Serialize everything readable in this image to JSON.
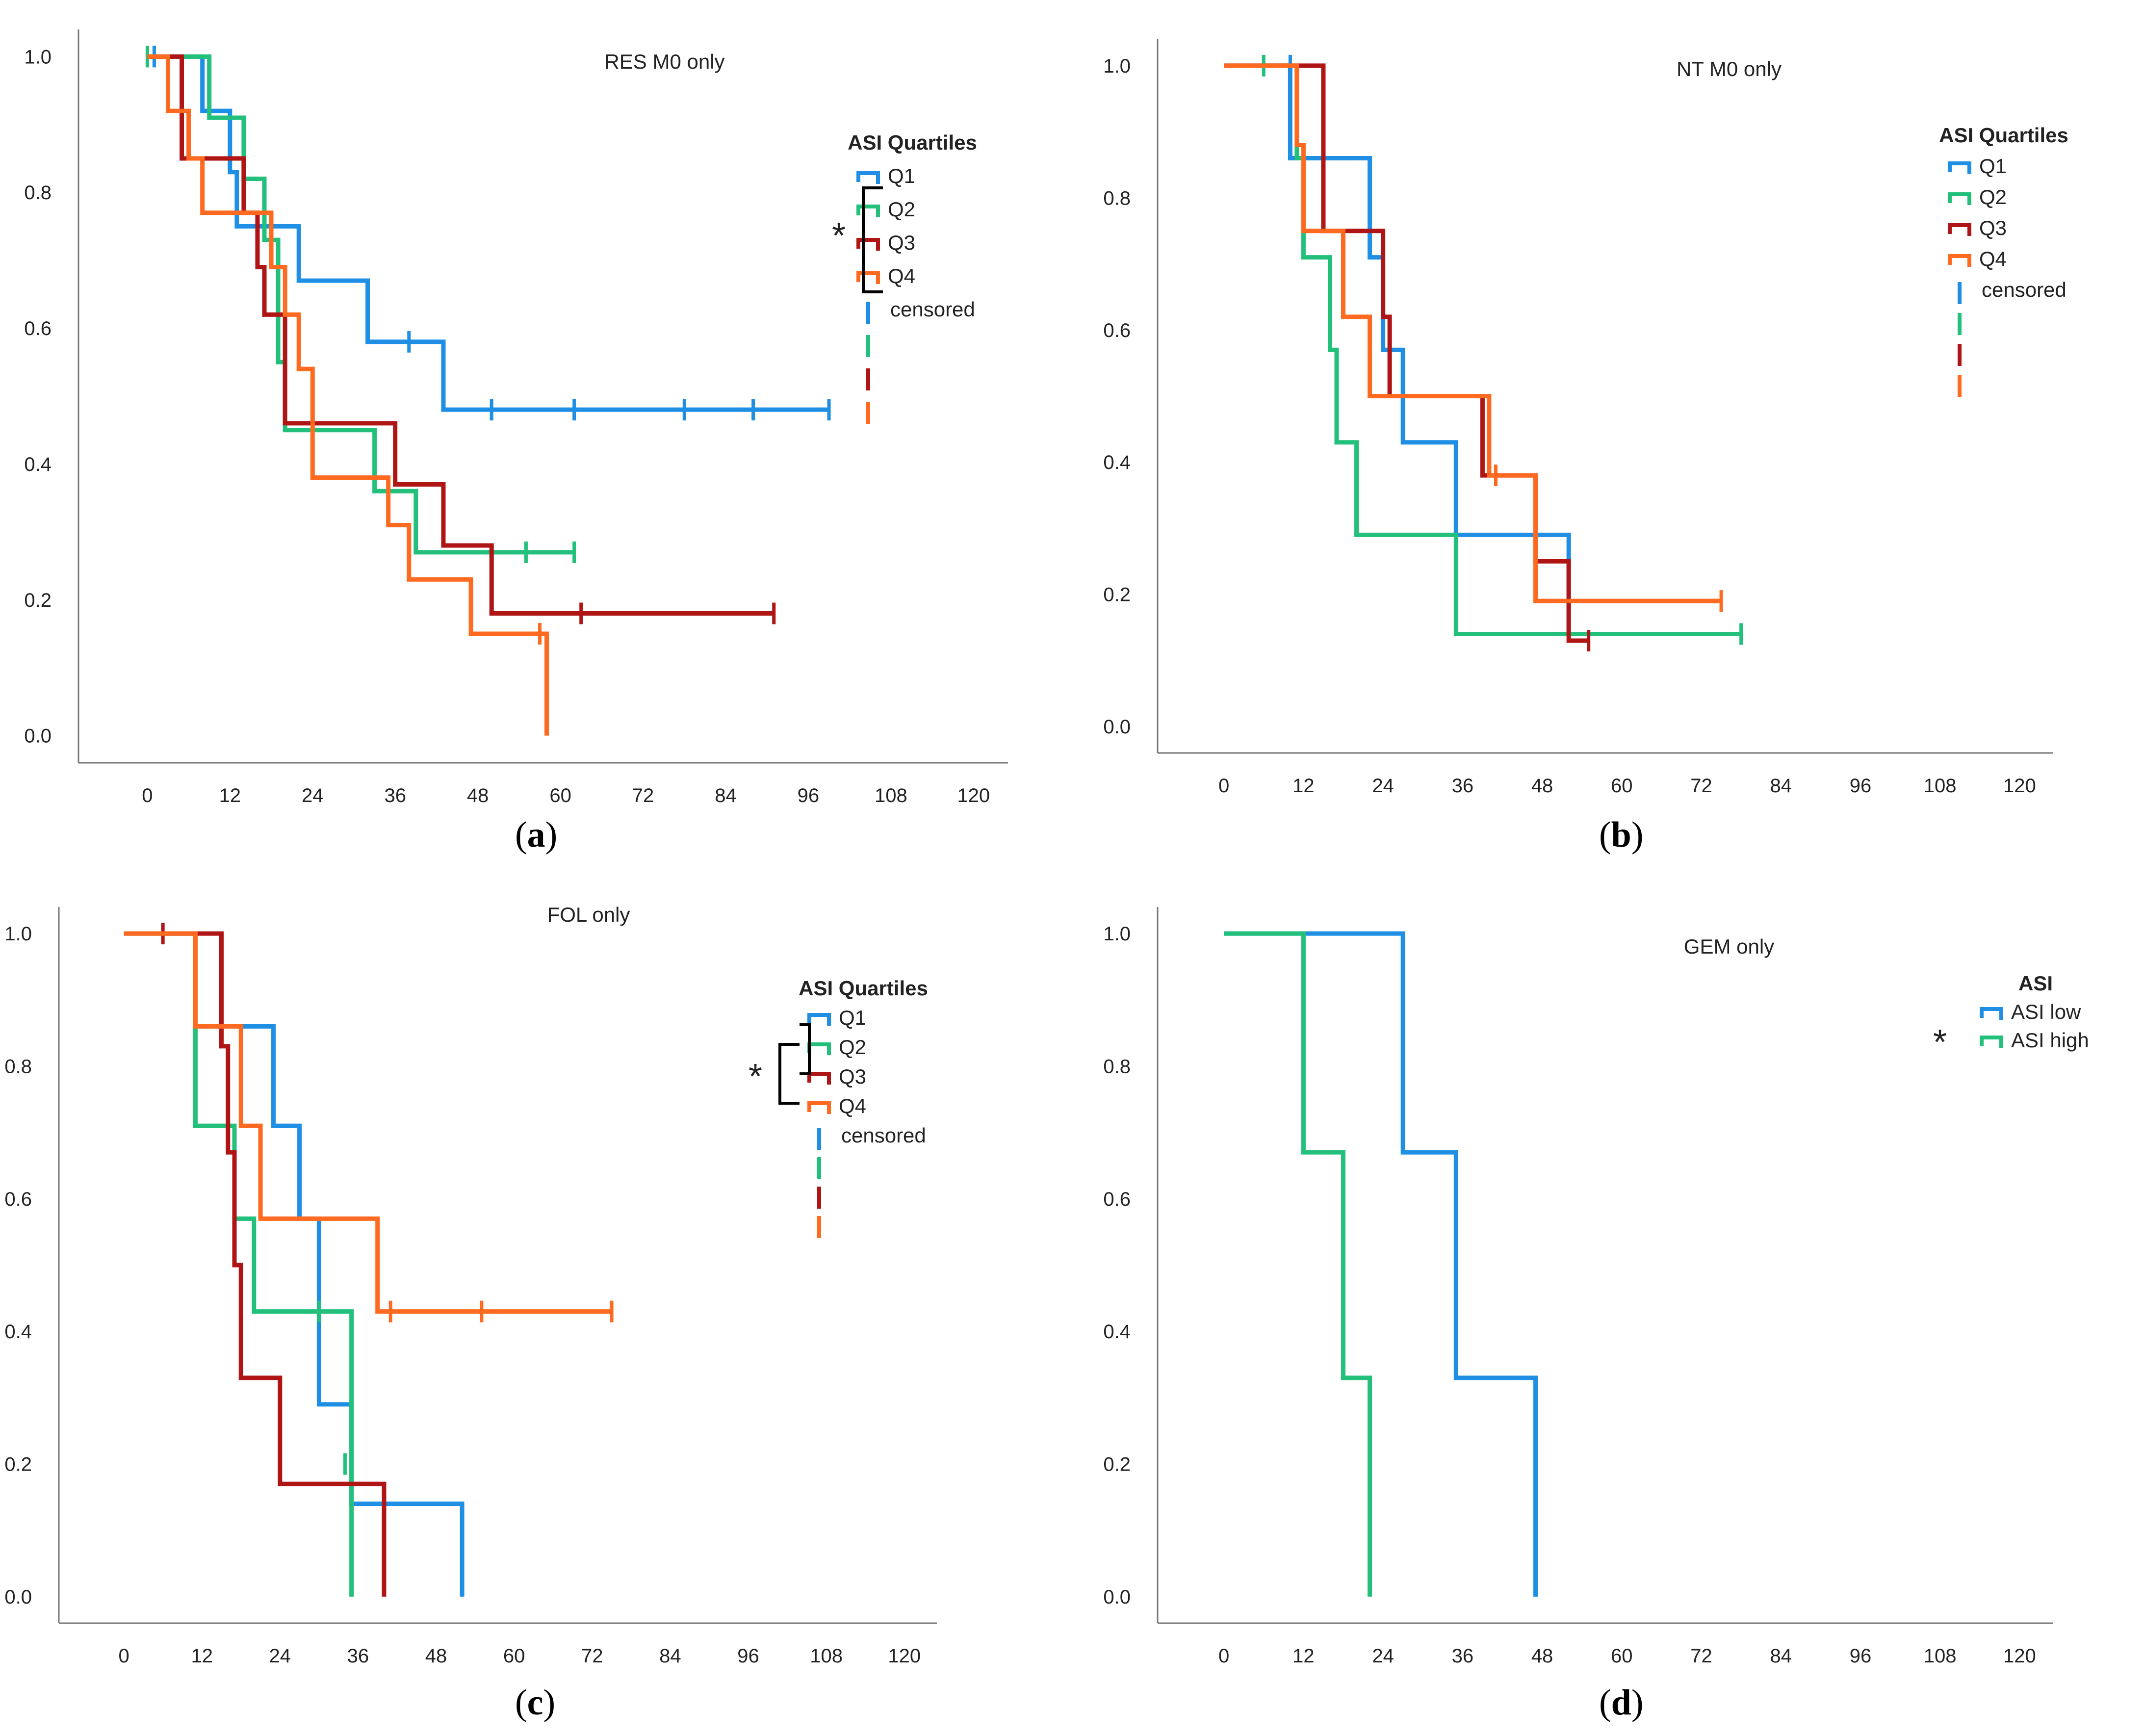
{
  "chart_data": [
    {
      "panel_label": "a",
      "type": "line",
      "subtype": "kaplan-meier",
      "title": "RES M0 only",
      "xlabel": "",
      "ylabel": "",
      "xlim": [
        -10,
        125
      ],
      "ylim": [
        -0.04,
        1.04
      ],
      "xticks": [
        0,
        12,
        24,
        36,
        48,
        60,
        72,
        84,
        96,
        108,
        120
      ],
      "yticks": [
        "0.0",
        "0.2",
        "0.4",
        "0.6",
        "0.8",
        "1.0"
      ],
      "legend": {
        "title": "ASI Quartiles",
        "censored_label": "censored",
        "significance_marker": "*"
      },
      "series": [
        {
          "name": "Q1",
          "color": "#1f8fe5",
          "steps": [
            [
              1,
              1.0
            ],
            [
              8,
              0.92
            ],
            [
              12,
              0.83
            ],
            [
              13,
              0.75
            ],
            [
              22,
              0.67
            ],
            [
              32,
              0.58
            ],
            [
              43,
              0.48
            ],
            [
              99,
              0.48
            ]
          ],
          "censored": [
            [
              1,
              1.0
            ],
            [
              38,
              0.58
            ],
            [
              50,
              0.48
            ],
            [
              62,
              0.48
            ],
            [
              78,
              0.48
            ],
            [
              88,
              0.48
            ],
            [
              99,
              0.48
            ]
          ]
        },
        {
          "name": "Q2",
          "color": "#22c07a",
          "steps": [
            [
              0,
              1.0
            ],
            [
              9,
              0.91
            ],
            [
              14,
              0.82
            ],
            [
              17,
              0.73
            ],
            [
              19,
              0.55
            ],
            [
              20,
              0.45
            ],
            [
              33,
              0.36
            ],
            [
              39,
              0.27
            ],
            [
              62,
              0.27
            ]
          ],
          "censored": [
            [
              0,
              1.0
            ],
            [
              55,
              0.27
            ],
            [
              62,
              0.27
            ]
          ]
        },
        {
          "name": "Q3",
          "color": "#b01515",
          "steps": [
            [
              0,
              1.0
            ],
            [
              5,
              0.85
            ],
            [
              14,
              0.77
            ],
            [
              16,
              0.69
            ],
            [
              17,
              0.62
            ],
            [
              20,
              0.46
            ],
            [
              36,
              0.37
            ],
            [
              43,
              0.28
            ],
            [
              50,
              0.18
            ],
            [
              91,
              0.18
            ]
          ],
          "censored": [
            [
              24,
              0.46
            ],
            [
              63,
              0.18
            ],
            [
              91,
              0.18
            ]
          ]
        },
        {
          "name": "Q4",
          "color": "#ff6a20",
          "steps": [
            [
              0,
              1.0
            ],
            [
              3,
              0.92
            ],
            [
              6,
              0.85
            ],
            [
              8,
              0.77
            ],
            [
              16,
              0.77
            ],
            [
              18,
              0.69
            ],
            [
              20,
              0.62
            ],
            [
              22,
              0.54
            ],
            [
              24,
              0.38
            ],
            [
              35,
              0.31
            ],
            [
              38,
              0.23
            ],
            [
              47,
              0.15
            ],
            [
              58,
              0.0
            ]
          ],
          "censored": [
            [
              57,
              0.15
            ]
          ]
        }
      ]
    },
    {
      "panel_label": "b",
      "type": "line",
      "subtype": "kaplan-meier",
      "title": "NT M0 only",
      "xlabel": "",
      "ylabel": "",
      "xlim": [
        -10,
        125
      ],
      "ylim": [
        -0.04,
        1.04
      ],
      "xticks": [
        0,
        12,
        24,
        36,
        48,
        60,
        72,
        84,
        96,
        108,
        120
      ],
      "yticks": [
        "0.0",
        "0.2",
        "0.4",
        "0.6",
        "0.8",
        "1.0"
      ],
      "legend": {
        "title": "ASI Quartiles",
        "censored_label": "censored",
        "significance_marker": ""
      },
      "series": [
        {
          "name": "Q1",
          "color": "#1f8fe5",
          "steps": [
            [
              0,
              1.0
            ],
            [
              10,
              0.86
            ],
            [
              22,
              0.71
            ],
            [
              24,
              0.57
            ],
            [
              27,
              0.43
            ],
            [
              35,
              0.29
            ],
            [
              52,
              0.14
            ]
          ],
          "censored": [
            [
              10,
              1.0
            ]
          ]
        },
        {
          "name": "Q2",
          "color": "#22c07a",
          "steps": [
            [
              6,
              1.0
            ],
            [
              11,
              0.86
            ],
            [
              12,
              0.71
            ],
            [
              16,
              0.57
            ],
            [
              17,
              0.43
            ],
            [
              20,
              0.29
            ],
            [
              35,
              0.14
            ],
            [
              78,
              0.14
            ]
          ],
          "censored": [
            [
              6,
              1.0
            ],
            [
              78,
              0.14
            ]
          ]
        },
        {
          "name": "Q3",
          "color": "#b01515",
          "steps": [
            [
              0,
              1.0
            ],
            [
              15,
              0.75
            ],
            [
              24,
              0.62
            ],
            [
              25,
              0.5
            ],
            [
              39,
              0.38
            ],
            [
              47,
              0.25
            ],
            [
              52,
              0.13
            ],
            [
              55,
              0.13
            ]
          ],
          "censored": [
            [
              55,
              0.13
            ]
          ]
        },
        {
          "name": "Q4",
          "color": "#ff6a20",
          "steps": [
            [
              0,
              1.0
            ],
            [
              11,
              0.88
            ],
            [
              12,
              0.75
            ],
            [
              18,
              0.62
            ],
            [
              22,
              0.5
            ],
            [
              40,
              0.38
            ],
            [
              47,
              0.19
            ],
            [
              75,
              0.19
            ]
          ],
          "censored": [
            [
              41,
              0.38
            ],
            [
              75,
              0.19
            ]
          ]
        }
      ]
    },
    {
      "panel_label": "c",
      "type": "line",
      "subtype": "kaplan-meier",
      "title": "FOL only",
      "xlabel": "",
      "ylabel": "",
      "xlim": [
        -10,
        125
      ],
      "ylim": [
        -0.04,
        1.04
      ],
      "xticks": [
        0,
        12,
        24,
        36,
        48,
        60,
        72,
        84,
        96,
        108,
        120
      ],
      "yticks": [
        "0.0",
        "0.2",
        "0.4",
        "0.6",
        "0.8",
        "1.0"
      ],
      "legend": {
        "title": "ASI Quartiles",
        "censored_label": "censored",
        "significance_marker": "*"
      },
      "series": [
        {
          "name": "Q1",
          "color": "#1f8fe5",
          "steps": [
            [
              0,
              1.0
            ],
            [
              11,
              0.86
            ],
            [
              23,
              0.71
            ],
            [
              27,
              0.57
            ],
            [
              30,
              0.29
            ],
            [
              35,
              0.14
            ],
            [
              52,
              0.0
            ]
          ],
          "censored": []
        },
        {
          "name": "Q2",
          "color": "#22c07a",
          "steps": [
            [
              0,
              1.0
            ],
            [
              11,
              0.71
            ],
            [
              17,
              0.57
            ],
            [
              20,
              0.43
            ],
            [
              35,
              0.0
            ]
          ],
          "censored": [
            [
              30,
              0.43
            ],
            [
              34,
              0.2
            ]
          ]
        },
        {
          "name": "Q3",
          "color": "#b01515",
          "steps": [
            [
              6,
              1.0
            ],
            [
              15,
              0.83
            ],
            [
              16,
              0.67
            ],
            [
              17,
              0.5
            ],
            [
              18,
              0.33
            ],
            [
              24,
              0.17
            ],
            [
              40,
              0.0
            ]
          ],
          "censored": [
            [
              6,
              1.0
            ]
          ]
        },
        {
          "name": "Q4",
          "color": "#ff6a20",
          "steps": [
            [
              0,
              1.0
            ],
            [
              11,
              0.86
            ],
            [
              18,
              0.71
            ],
            [
              21,
              0.57
            ],
            [
              39,
              0.43
            ],
            [
              75,
              0.43
            ]
          ],
          "censored": [
            [
              41,
              0.43
            ],
            [
              55,
              0.43
            ],
            [
              75,
              0.43
            ]
          ]
        }
      ]
    },
    {
      "panel_label": "d",
      "type": "line",
      "subtype": "kaplan-meier",
      "title": "GEM only",
      "xlabel": "",
      "ylabel": "",
      "xlim": [
        -10,
        125
      ],
      "ylim": [
        -0.04,
        1.04
      ],
      "xticks": [
        0,
        12,
        24,
        36,
        48,
        60,
        72,
        84,
        96,
        108,
        120
      ],
      "yticks": [
        "0.0",
        "0.2",
        "0.4",
        "0.6",
        "0.8",
        "1.0"
      ],
      "legend": {
        "title": "ASI",
        "censored_label": "",
        "significance_marker": "*"
      },
      "series": [
        {
          "name": "ASI low",
          "color": "#1f8fe5",
          "steps": [
            [
              0,
              1.0
            ],
            [
              27,
              0.67
            ],
            [
              35,
              0.33
            ],
            [
              47,
              0.0
            ]
          ],
          "censored": []
        },
        {
          "name": "ASI high",
          "color": "#22c07a",
          "steps": [
            [
              0,
              1.0
            ],
            [
              12,
              0.67
            ],
            [
              18,
              0.33
            ],
            [
              22,
              0.0
            ]
          ],
          "censored": []
        }
      ]
    }
  ]
}
